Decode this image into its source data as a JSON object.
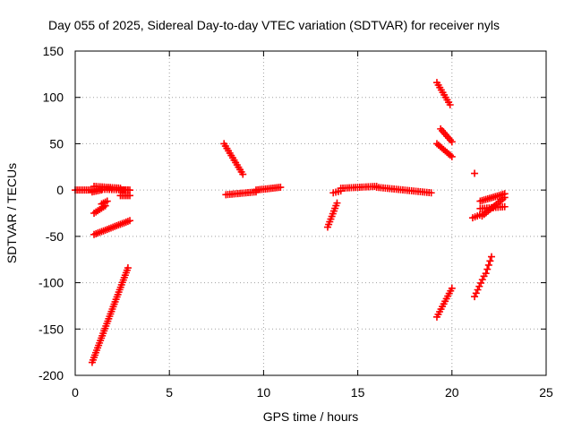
{
  "chart_data": {
    "type": "scatter",
    "title": "Day 055 of 2025, Sidereal Day-to-day VTEC variation (SDTVAR) for receiver nyls",
    "xlabel": "GPS time / hours",
    "ylabel": "SDTVAR / TECUs",
    "xlim": [
      0,
      25
    ],
    "ylim": [
      -200,
      150
    ],
    "xticks": [
      0,
      5,
      10,
      15,
      20,
      25
    ],
    "yticks": [
      -200,
      -150,
      -100,
      -50,
      0,
      50,
      100,
      150
    ],
    "grid": true,
    "marker": "plus",
    "color": "#ff0000",
    "segments": [
      {
        "x0": 0.0,
        "y0": 0,
        "x1": 0.9,
        "y1": 0,
        "n": 10
      },
      {
        "x0": 0.9,
        "y0": -2,
        "x1": 1.4,
        "y1": 0,
        "n": 6
      },
      {
        "x0": 1.0,
        "y0": 4,
        "x1": 2.4,
        "y1": 2,
        "n": 14
      },
      {
        "x0": 1.2,
        "y0": 1,
        "x1": 2.8,
        "y1": 0,
        "n": 14
      },
      {
        "x0": 2.4,
        "y0": 0,
        "x1": 2.9,
        "y1": 0,
        "n": 6
      },
      {
        "x0": 2.4,
        "y0": -6,
        "x1": 2.9,
        "y1": -6,
        "n": 6
      },
      {
        "x0": 1.0,
        "y0": -25,
        "x1": 1.6,
        "y1": -17,
        "n": 7
      },
      {
        "x0": 1.4,
        "y0": -15,
        "x1": 1.7,
        "y1": -12,
        "n": 4
      },
      {
        "x0": 1.0,
        "y0": -48,
        "x1": 2.9,
        "y1": -33,
        "n": 20
      },
      {
        "x0": 0.9,
        "y0": -186,
        "x1": 2.8,
        "y1": -84,
        "n": 40
      },
      {
        "x0": 7.9,
        "y0": 50,
        "x1": 8.9,
        "y1": 17,
        "n": 14
      },
      {
        "x0": 8.0,
        "y0": -5,
        "x1": 9.6,
        "y1": -2,
        "n": 16
      },
      {
        "x0": 9.6,
        "y0": 0,
        "x1": 10.9,
        "y1": 3,
        "n": 14
      },
      {
        "x0": 13.4,
        "y0": -40,
        "x1": 13.9,
        "y1": -14,
        "n": 10
      },
      {
        "x0": 13.7,
        "y0": -3,
        "x1": 14.1,
        "y1": -1,
        "n": 4
      },
      {
        "x0": 14.1,
        "y0": 2,
        "x1": 16.0,
        "y1": 4,
        "n": 18
      },
      {
        "x0": 16.0,
        "y0": 3,
        "x1": 18.9,
        "y1": -3,
        "n": 26
      },
      {
        "x0": 19.2,
        "y0": 116,
        "x1": 19.9,
        "y1": 92,
        "n": 10
      },
      {
        "x0": 19.4,
        "y0": 66,
        "x1": 20.0,
        "y1": 52,
        "n": 8
      },
      {
        "x0": 19.2,
        "y0": 50,
        "x1": 20.0,
        "y1": 36,
        "n": 10
      },
      {
        "x0": 19.2,
        "y0": -137,
        "x1": 20.0,
        "y1": -106,
        "n": 12
      },
      {
        "x0": 21.2,
        "y0": 18,
        "x1": 21.2,
        "y1": 18,
        "n": 1
      },
      {
        "x0": 21.1,
        "y0": -30,
        "x1": 21.6,
        "y1": -26,
        "n": 5
      },
      {
        "x0": 21.5,
        "y0": -12,
        "x1": 22.8,
        "y1": -4,
        "n": 14
      },
      {
        "x0": 21.5,
        "y0": -20,
        "x1": 22.8,
        "y1": -18,
        "n": 12
      },
      {
        "x0": 21.6,
        "y0": -28,
        "x1": 22.8,
        "y1": -8,
        "n": 12
      },
      {
        "x0": 21.2,
        "y0": -115,
        "x1": 21.7,
        "y1": -93,
        "n": 7
      },
      {
        "x0": 21.8,
        "y0": -90,
        "x1": 22.1,
        "y1": -72,
        "n": 5
      }
    ]
  }
}
